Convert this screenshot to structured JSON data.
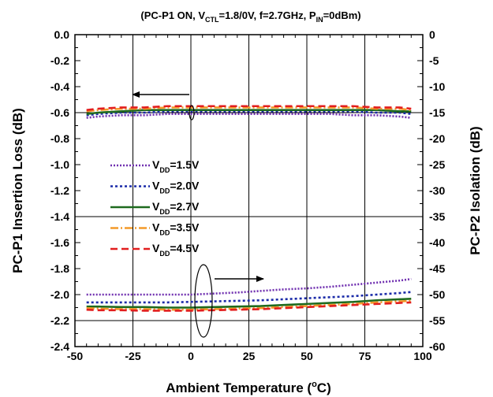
{
  "chart_data": {
    "type": "line",
    "title": {
      "open": "(PC-P1 ON, V",
      "sub1": "CTL",
      "mid": "=1.8/0V, f=2.7GHz, P",
      "sub2": "IN",
      "close": "=0dBm)"
    },
    "xlabel": {
      "main": "Ambient Temperature  (",
      "sup": "o",
      "unit": "C)"
    },
    "ylabel_left": "PC-P1 Insertion Loss  (dB)",
    "ylabel_right": "PC-P2 Isolation  (dB)",
    "xlim": [
      -50,
      100
    ],
    "ylim_left": [
      -2.4,
      0.0
    ],
    "ylim_right": [
      -60,
      0
    ],
    "x_ticks": [
      "-50",
      "-25",
      "0",
      "25",
      "50",
      "75",
      "100"
    ],
    "y_ticks_left": [
      "0.0",
      "-0.2",
      "-0.4",
      "-0.6",
      "-0.8",
      "-1.0",
      "-1.2",
      "-1.4",
      "-1.6",
      "-1.8",
      "-2.0",
      "-2.2",
      "-2.4"
    ],
    "y_ticks_right": [
      "0",
      "-5",
      "-10",
      "-15",
      "-20",
      "-25",
      "-30",
      "-35",
      "-40",
      "-45",
      "-50",
      "-55",
      "-60"
    ],
    "grid": true,
    "legend_placement": "left-center",
    "x": [
      -45,
      -40,
      -30,
      -20,
      -10,
      0,
      10,
      20,
      30,
      40,
      50,
      60,
      70,
      80,
      90,
      95
    ],
    "series": [
      {
        "name_main": "V",
        "name_sub": "DD",
        "name_val": "=1.5V",
        "color": "#7030b0",
        "dash": "2,2",
        "insertion_loss": [
          -0.64,
          -0.63,
          -0.62,
          -0.62,
          -0.61,
          -0.61,
          -0.61,
          -0.61,
          -0.61,
          -0.61,
          -0.61,
          -0.61,
          -0.62,
          -0.62,
          -0.63,
          -0.64
        ],
        "isolation": [
          -50.0,
          -50.0,
          -50.0,
          -50.0,
          -50.0,
          -50.0,
          -49.8,
          -49.6,
          -49.3,
          -49.0,
          -48.8,
          -48.5,
          -48.1,
          -47.7,
          -47.3,
          -47.0
        ]
      },
      {
        "name_main": "V",
        "name_sub": "DD",
        "name_val": "=2.0V",
        "color": "#1a2aa8",
        "dash": "3,3",
        "insertion_loss": [
          -0.62,
          -0.61,
          -0.6,
          -0.6,
          -0.59,
          -0.59,
          -0.59,
          -0.59,
          -0.59,
          -0.59,
          -0.59,
          -0.59,
          -0.59,
          -0.6,
          -0.6,
          -0.61
        ],
        "isolation": [
          -51.5,
          -51.5,
          -51.5,
          -51.5,
          -51.5,
          -51.4,
          -51.3,
          -51.2,
          -51.1,
          -50.9,
          -50.7,
          -50.5,
          -50.3,
          -50.0,
          -49.7,
          -49.5
        ]
      },
      {
        "name_main": "V",
        "name_sub": "DD",
        "name_val": "=2.7V",
        "color": "#1e6a1e",
        "dash": "",
        "insertion_loss": [
          -0.61,
          -0.6,
          -0.59,
          -0.58,
          -0.58,
          -0.58,
          -0.58,
          -0.58,
          -0.58,
          -0.58,
          -0.58,
          -0.58,
          -0.58,
          -0.58,
          -0.59,
          -0.59
        ],
        "isolation": [
          -52.3,
          -52.3,
          -52.4,
          -52.4,
          -52.5,
          -52.5,
          -52.4,
          -52.3,
          -52.2,
          -52.0,
          -51.8,
          -51.6,
          -51.4,
          -51.1,
          -50.9,
          -50.8
        ]
      },
      {
        "name_main": "V",
        "name_sub": "DD",
        "name_val": "=3.5V",
        "color": "#f39a2a",
        "dash": "10,3,2,3",
        "insertion_loss": [
          -0.59,
          -0.58,
          -0.57,
          -0.57,
          -0.56,
          -0.56,
          -0.56,
          -0.56,
          -0.56,
          -0.56,
          -0.56,
          -0.56,
          -0.56,
          -0.57,
          -0.57,
          -0.58
        ],
        "isolation": [
          -52.6,
          -52.7,
          -52.8,
          -52.8,
          -52.9,
          -52.9,
          -52.8,
          -52.7,
          -52.6,
          -52.4,
          -52.2,
          -52.0,
          -51.8,
          -51.5,
          -51.3,
          -51.2
        ]
      },
      {
        "name_main": "V",
        "name_sub": "DD",
        "name_val": "=4.5V",
        "color": "#e21e1e",
        "dash": "9,5",
        "insertion_loss": [
          -0.58,
          -0.57,
          -0.56,
          -0.56,
          -0.55,
          -0.55,
          -0.55,
          -0.55,
          -0.55,
          -0.55,
          -0.55,
          -0.55,
          -0.55,
          -0.56,
          -0.56,
          -0.57
        ],
        "isolation": [
          -52.9,
          -53.0,
          -53.0,
          -53.1,
          -53.1,
          -53.1,
          -53.0,
          -52.9,
          -52.8,
          -52.6,
          -52.4,
          -52.2,
          -52.0,
          -51.8,
          -51.6,
          -51.5
        ]
      }
    ]
  }
}
